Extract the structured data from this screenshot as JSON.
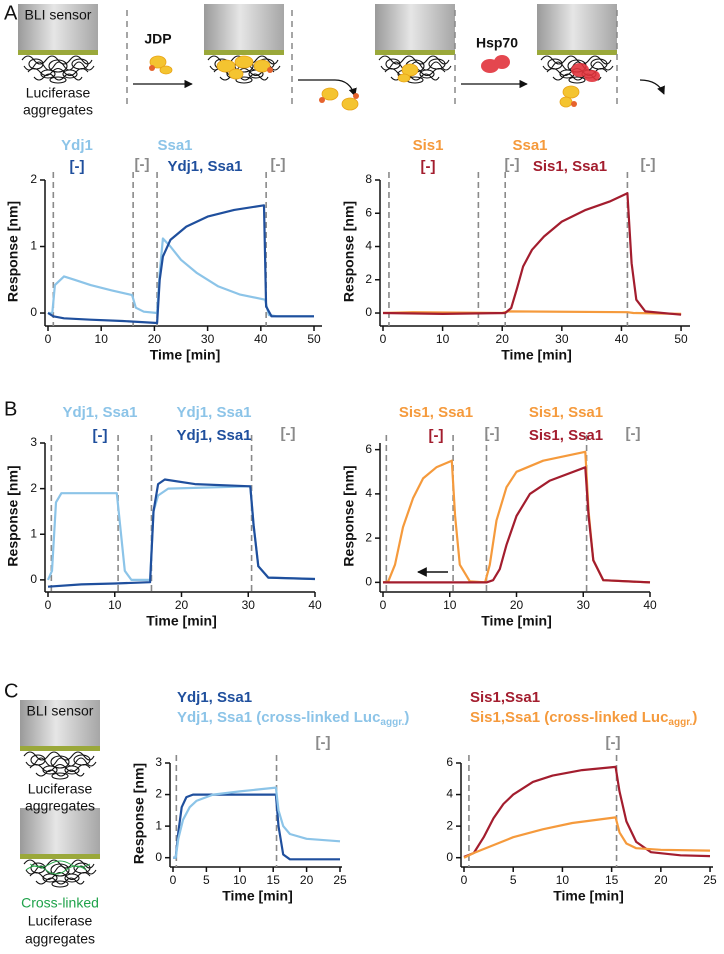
{
  "panel_labels": [
    "A",
    "B",
    "C"
  ],
  "schematic": {
    "sensor_label": "BLI sensor",
    "aggregates_label": [
      "Luciferase",
      "aggregates"
    ],
    "jdp": "JDP",
    "hsp70": "Hsp70"
  },
  "panel_c_schematic": {
    "sensor_label": "BLI sensor",
    "aggregates_label": [
      "Luciferase",
      "aggregates"
    ],
    "crosslinked_label": [
      "Cross-linked",
      "Luciferase",
      "aggregates"
    ]
  },
  "chart_data": [
    {
      "type": "line",
      "xlabel": "Time [min]",
      "ylabel": "Response [nm]",
      "xlim": [
        0,
        51.5
      ],
      "ylim": [
        -0.15,
        2
      ],
      "xticks": [
        0,
        10,
        20,
        30,
        40,
        50
      ],
      "yticks": [
        0,
        1,
        2
      ],
      "vlines": [
        1,
        16,
        20.5,
        41
      ],
      "annotations": [
        {
          "text": "Ydj1",
          "color": "#8cc4e8"
        },
        {
          "text": "[-]",
          "color": "#1f4f9d"
        },
        {
          "text": "[-]",
          "color": "#8a8a8a"
        },
        {
          "text": "Ssa1",
          "color": "#8cc4e8"
        },
        {
          "text": "Ydj1, Ssa1",
          "color": "#1f4f9d"
        },
        {
          "text": "[-]",
          "color": "#8a8a8a"
        }
      ],
      "series": [
        {
          "color": "#8cc4e8",
          "x": [
            0,
            0.8,
            1.3,
            3,
            5,
            8,
            12,
            15.8,
            16.5,
            18,
            20.5,
            21,
            21.6,
            23,
            25,
            28,
            32,
            36,
            40.8,
            41.5,
            43,
            50
          ],
          "values": [
            0,
            0,
            0.42,
            0.55,
            0.5,
            0.42,
            0.34,
            0.27,
            0.08,
            0.02,
            0,
            0.6,
            1.12,
            1.0,
            0.8,
            0.6,
            0.4,
            0.28,
            0.2,
            -0.03,
            -0.05,
            -0.05
          ]
        },
        {
          "color": "#1f4f9d",
          "x": [
            0,
            1,
            3,
            8,
            14,
            20.5,
            21,
            21.6,
            23,
            26,
            30,
            35,
            40.6,
            41,
            42,
            50
          ],
          "values": [
            0,
            -0.05,
            -0.08,
            -0.1,
            -0.12,
            -0.15,
            0.5,
            0.85,
            1.1,
            1.3,
            1.45,
            1.55,
            1.62,
            0.1,
            -0.05,
            -0.05
          ]
        }
      ]
    },
    {
      "type": "line",
      "xlabel": "Time [min]",
      "ylabel": "Response [nm]",
      "xlim": [
        0,
        51.5
      ],
      "ylim": [
        -0.6,
        8
      ],
      "xticks": [
        0,
        10,
        20,
        30,
        40,
        50
      ],
      "yticks": [
        0,
        2,
        4,
        6,
        8
      ],
      "vlines": [
        1,
        16,
        20.5,
        41
      ],
      "annotations": [
        {
          "text": "Sis1",
          "color": "#f59a3c"
        },
        {
          "text": "[-]",
          "color": "#a31d2e"
        },
        {
          "text": "[-]",
          "color": "#8a8a8a"
        },
        {
          "text": "Ssa1",
          "color": "#f59a3c"
        },
        {
          "text": "Sis1, Ssa1",
          "color": "#a31d2e"
        },
        {
          "text": "[-]",
          "color": "#8a8a8a"
        }
      ],
      "series": [
        {
          "color": "#f59a3c",
          "x": [
            0,
            5,
            20,
            21,
            41,
            42,
            50
          ],
          "values": [
            0,
            0.05,
            0,
            0.1,
            0.05,
            0,
            -0.05
          ]
        },
        {
          "color": "#a31d2e",
          "x": [
            0,
            10,
            20.5,
            21.5,
            22.5,
            23.5,
            25,
            27,
            30,
            34,
            38,
            41,
            41.7,
            42.5,
            44,
            50
          ],
          "values": [
            0,
            -0.05,
            0,
            0.3,
            1.5,
            2.8,
            3.8,
            4.6,
            5.5,
            6.2,
            6.7,
            7.2,
            3,
            0.8,
            0.1,
            -0.1
          ]
        }
      ]
    },
    {
      "type": "line",
      "xlabel": "Time [min]",
      "ylabel": "Response [nm]",
      "xlim": [
        0,
        40
      ],
      "ylim": [
        -0.2,
        3
      ],
      "xticks": [
        0,
        10,
        20,
        30,
        40
      ],
      "yticks": [
        0,
        1,
        2,
        3
      ],
      "vlines": [
        0.5,
        10.5,
        15.5,
        30.5
      ],
      "annotations": [
        {
          "text": "Ydj1, Ssa1",
          "color": "#8cc4e8"
        },
        {
          "text": "[-]",
          "color": "#1f4f9d"
        },
        {
          "text": "Ydj1, Ssa1",
          "color": "#8cc4e8"
        },
        {
          "text": "Ydj1, Ssa1",
          "color": "#1f4f9d"
        },
        {
          "text": "[-]",
          "color": "#8a8a8a"
        }
      ],
      "series": [
        {
          "color": "#8cc4e8",
          "x": [
            0,
            0.6,
            1.2,
            2,
            10.3,
            10.8,
            11.5,
            12.5,
            15.3,
            15.8,
            16.5,
            18,
            30.3,
            30.8,
            31.5,
            33,
            40
          ],
          "values": [
            0,
            0.2,
            1.7,
            1.9,
            1.9,
            1.2,
            0.2,
            0,
            0,
            1.5,
            1.85,
            2.0,
            2.05,
            1.2,
            0.3,
            0.05,
            0.02
          ]
        },
        {
          "color": "#1f4f9d",
          "x": [
            0,
            5,
            10,
            15.3,
            15.8,
            16.5,
            17.5,
            22,
            30.3,
            30.8,
            31.5,
            33,
            40
          ],
          "values": [
            -0.15,
            -0.1,
            -0.08,
            -0.05,
            1.5,
            2.1,
            2.2,
            2.1,
            2.05,
            1.2,
            0.3,
            0.05,
            0.02
          ]
        }
      ]
    },
    {
      "type": "line",
      "xlabel": "Time [min]",
      "ylabel": "Response [nm]",
      "xlim": [
        0,
        40
      ],
      "ylim": [
        -0.3,
        6.3
      ],
      "xticks": [
        0,
        10,
        20,
        30,
        40
      ],
      "yticks": [
        0,
        2,
        4,
        6
      ],
      "vlines": [
        0.5,
        10.5,
        15.5,
        30.5
      ],
      "annotations": [
        {
          "text": "Sis1, Ssa1",
          "color": "#f59a3c"
        },
        {
          "text": "[-]",
          "color": "#a31d2e"
        },
        {
          "text": "[-]",
          "color": "#8a8a8a"
        },
        {
          "text": "Sis1, Ssa1",
          "color": "#f59a3c"
        },
        {
          "text": "Sis1, Ssa1",
          "color": "#a31d2e"
        },
        {
          "text": "[-]",
          "color": "#8a8a8a"
        }
      ],
      "series": [
        {
          "color": "#f59a3c",
          "x": [
            0,
            0.8,
            1.8,
            3,
            4.5,
            6,
            8,
            10.3,
            10.8,
            11.5,
            13,
            15.3,
            16,
            17,
            18.5,
            20,
            24,
            30.3,
            30.8,
            31.5,
            33,
            40
          ],
          "values": [
            0,
            0.05,
            0.8,
            2.5,
            3.8,
            4.7,
            5.2,
            5.5,
            3,
            0.8,
            0.05,
            0,
            0.8,
            2.8,
            4.3,
            5,
            5.5,
            5.9,
            3.2,
            1,
            0.1,
            0
          ]
        },
        {
          "color": "#a31d2e",
          "x": [
            0,
            15.5,
            16.5,
            17.5,
            18.5,
            20,
            22,
            25,
            30.3,
            30.8,
            31.5,
            33,
            40
          ],
          "values": [
            0,
            0,
            0.1,
            0.6,
            1.7,
            3,
            4,
            4.6,
            5.2,
            3,
            1,
            0.1,
            0
          ]
        }
      ]
    },
    {
      "type": "line",
      "xlabel": "Time [min]",
      "ylabel": "Response [nm]",
      "xlim": [
        0,
        25.3
      ],
      "ylim": [
        -0.2,
        3
      ],
      "xticks": [
        0,
        5,
        10,
        15,
        20,
        25
      ],
      "yticks": [
        0,
        1,
        2,
        3
      ],
      "vlines": [
        0.5,
        15.5
      ],
      "annotations": [
        {
          "text": "[-]",
          "color": "#8a8a8a"
        }
      ],
      "series": [
        {
          "name_parts": [
            "Ydj1, Ssa1"
          ],
          "color": "#1f4f9d",
          "x": [
            0,
            0.4,
            0.8,
            1.3,
            2,
            3,
            15.4,
            15.8,
            16.5,
            17.5,
            20,
            25
          ],
          "values": [
            0,
            0,
            0.8,
            1.6,
            1.92,
            2.0,
            2.0,
            1.0,
            0.1,
            -0.05,
            -0.05,
            -0.05
          ]
        },
        {
          "name_parts": [
            "Ydj1, Ssa1 (cross-linked Luc",
            "aggr.",
            ")"
          ],
          "color": "#8cc4e8",
          "x": [
            0,
            0.4,
            0.8,
            1.5,
            2.5,
            3.5,
            6,
            10,
            15.4,
            15.8,
            16.5,
            17.5,
            20,
            25
          ],
          "values": [
            0,
            0,
            0.6,
            1.2,
            1.6,
            1.8,
            2.0,
            2.1,
            2.22,
            1.5,
            1.0,
            0.75,
            0.6,
            0.52
          ]
        }
      ]
    },
    {
      "type": "line",
      "xlabel": "Time [min]",
      "xlim": [
        0,
        25.3
      ],
      "ylim": [
        -0.4,
        6
      ],
      "xticks": [
        0,
        5,
        10,
        15,
        20,
        25
      ],
      "yticks": [
        0,
        2,
        4,
        6
      ],
      "vlines": [
        0.5,
        15.5
      ],
      "annotations": [
        {
          "text": "[-]",
          "color": "#8a8a8a"
        }
      ],
      "series": [
        {
          "name_parts": [
            "Sis1,Ssa1"
          ],
          "color": "#a31d2e",
          "x": [
            0,
            1,
            2,
            3,
            4,
            5,
            7,
            9,
            12,
            15.4,
            15.8,
            16.5,
            17.5,
            19,
            22,
            25
          ],
          "values": [
            0.05,
            0.3,
            1.3,
            2.5,
            3.4,
            4.0,
            4.8,
            5.2,
            5.55,
            5.75,
            4.2,
            2.3,
            1.0,
            0.35,
            0.15,
            0.1
          ]
        },
        {
          "name_parts": [
            "Sis1,Ssa1 (cross-linked Luc",
            "aggr.",
            ")"
          ],
          "color": "#f59a3c",
          "x": [
            0,
            1,
            3,
            5,
            8,
            11,
            15.4,
            15.8,
            16.5,
            17.5,
            20,
            25
          ],
          "values": [
            0,
            0.3,
            0.8,
            1.3,
            1.8,
            2.2,
            2.55,
            1.6,
            0.9,
            0.6,
            0.5,
            0.45
          ]
        }
      ]
    }
  ]
}
